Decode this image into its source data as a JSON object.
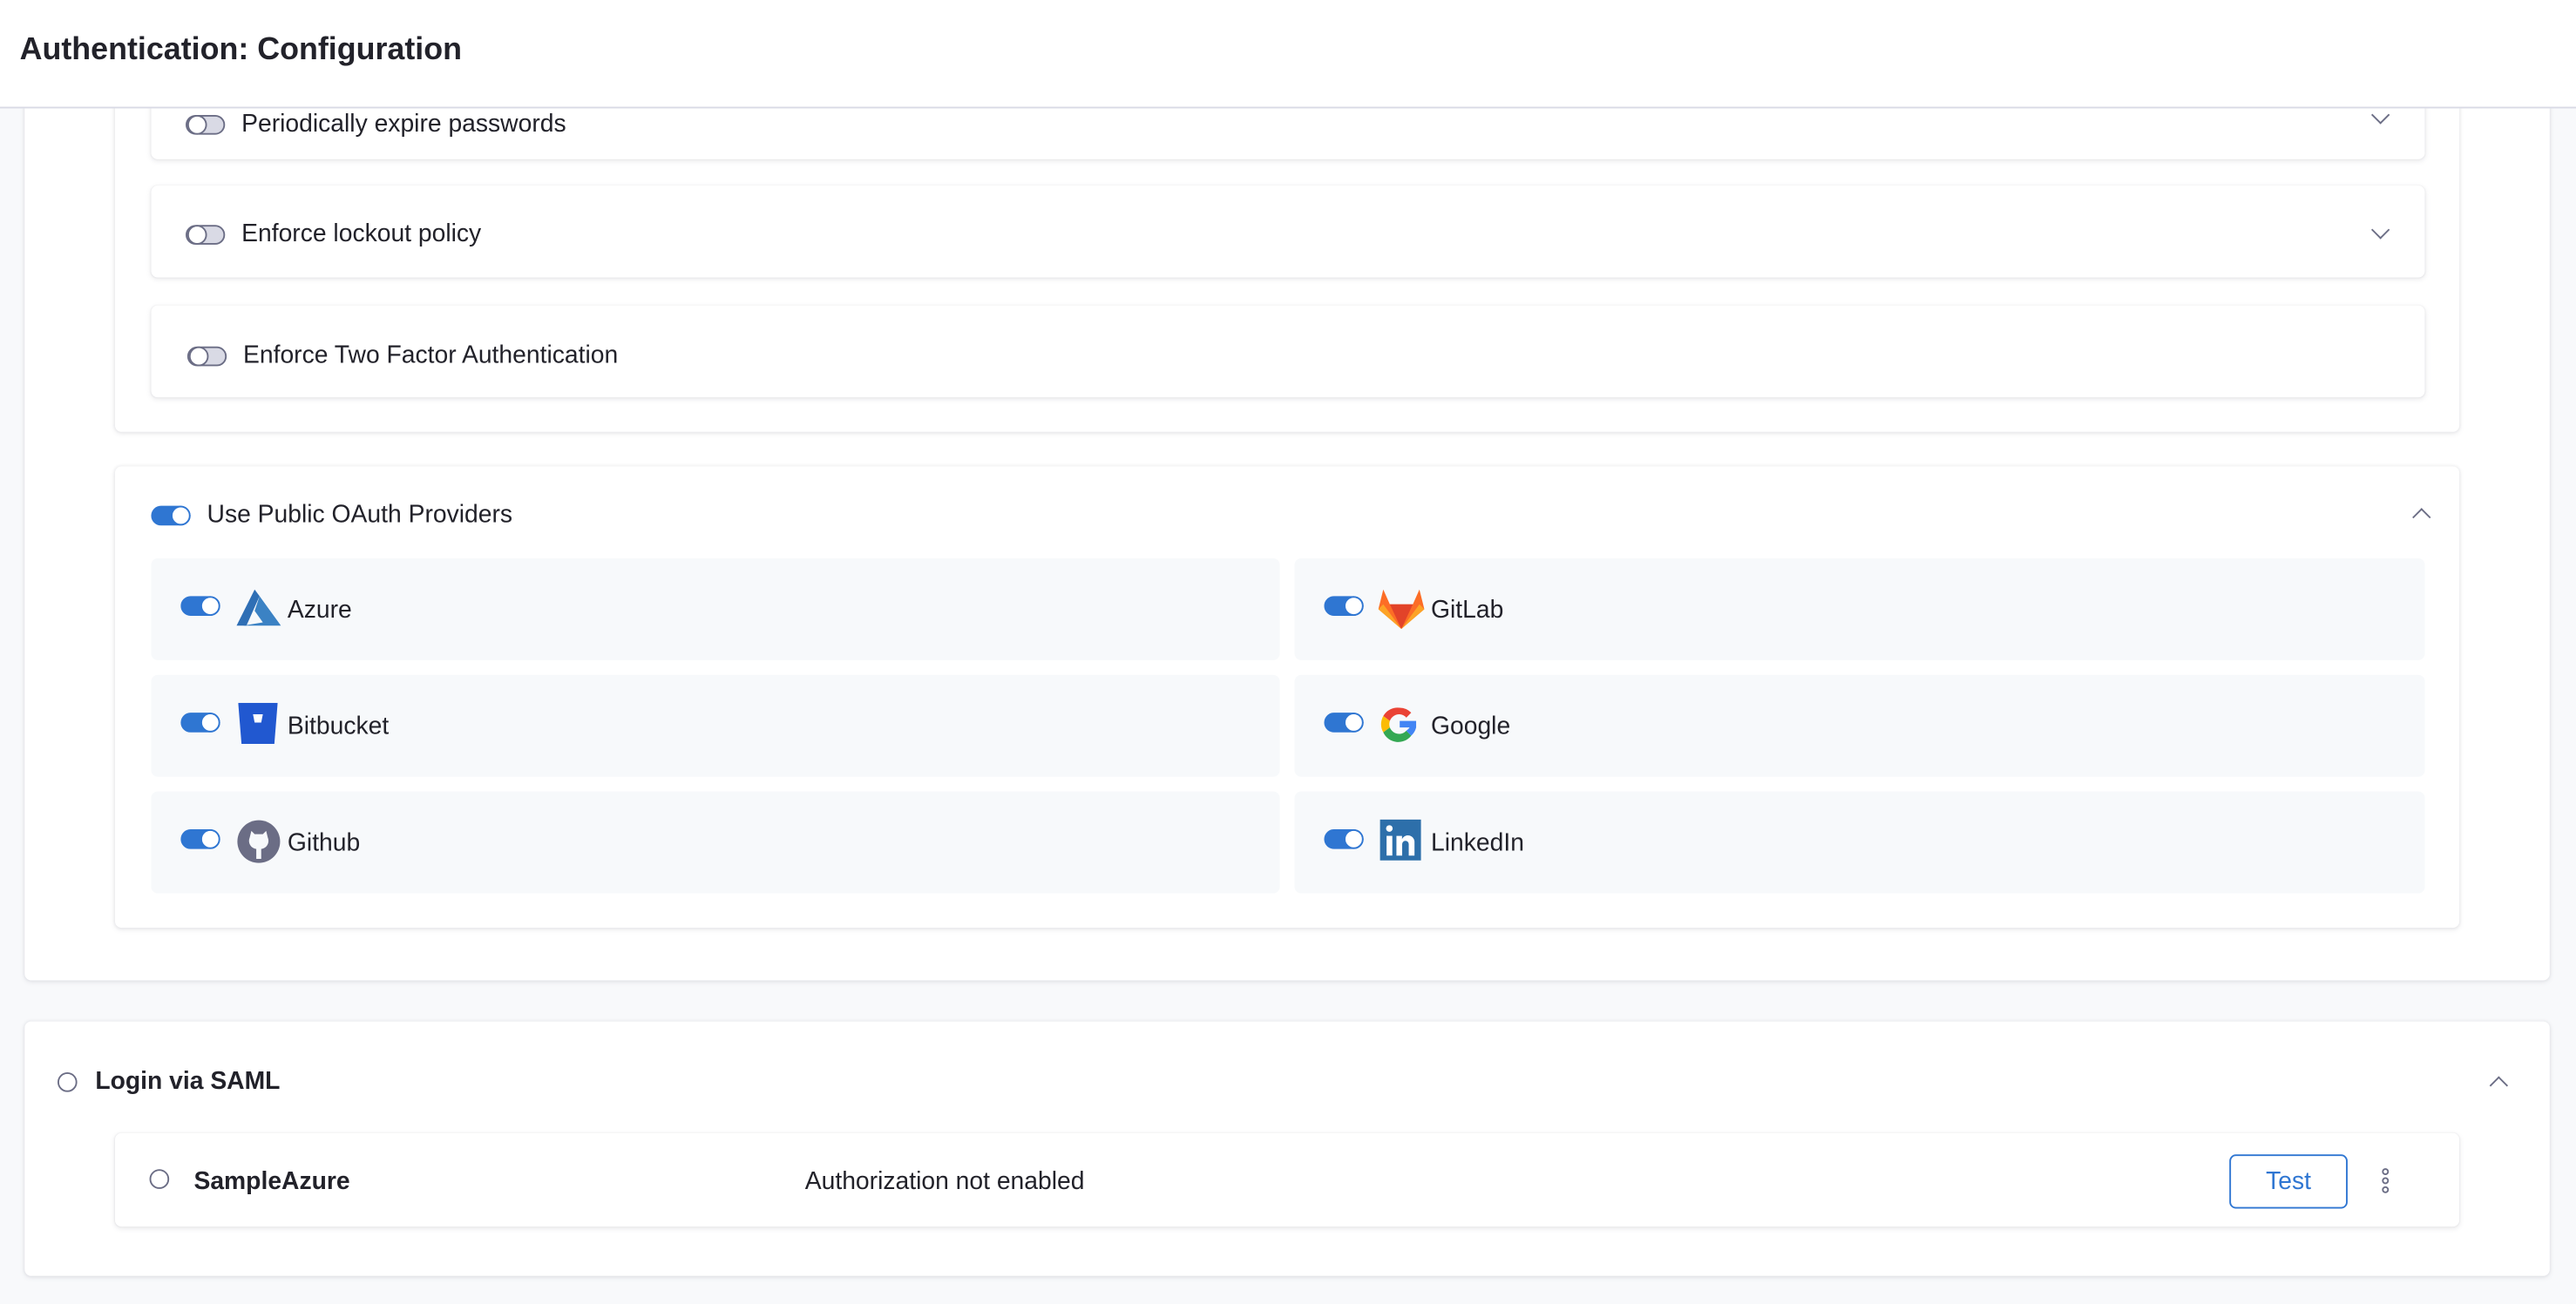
{
  "header": {
    "title": "Authentication: Configuration"
  },
  "password_policy": {
    "items": [
      {
        "label": "Periodically expire passwords",
        "enabled": false,
        "expandable": true
      },
      {
        "label": "Enforce lockout policy",
        "enabled": false,
        "expandable": true
      },
      {
        "label": "Enforce Two Factor Authentication",
        "enabled": false,
        "expandable": false
      }
    ]
  },
  "oauth": {
    "label": "Use Public OAuth Providers",
    "enabled": true,
    "expanded": true,
    "providers": [
      {
        "name": "Azure",
        "icon": "azure-icon",
        "enabled": true
      },
      {
        "name": "GitLab",
        "icon": "gitlab-icon",
        "enabled": true
      },
      {
        "name": "Bitbucket",
        "icon": "bitbucket-icon",
        "enabled": true
      },
      {
        "name": "Google",
        "icon": "google-icon",
        "enabled": true
      },
      {
        "name": "Github",
        "icon": "github-icon",
        "enabled": true
      },
      {
        "name": "LinkedIn",
        "icon": "linkedin-icon",
        "enabled": true
      }
    ]
  },
  "saml": {
    "label": "Login via SAML",
    "selected": false,
    "expanded": true,
    "providers": [
      {
        "name": "SampleAzure",
        "status": "Authorization not enabled",
        "test_label": "Test",
        "selected": false
      }
    ]
  },
  "colors": {
    "accent": "#2f76d2",
    "page_bg": "#f8f9fb",
    "tile_bg": "#f7f9fb"
  }
}
